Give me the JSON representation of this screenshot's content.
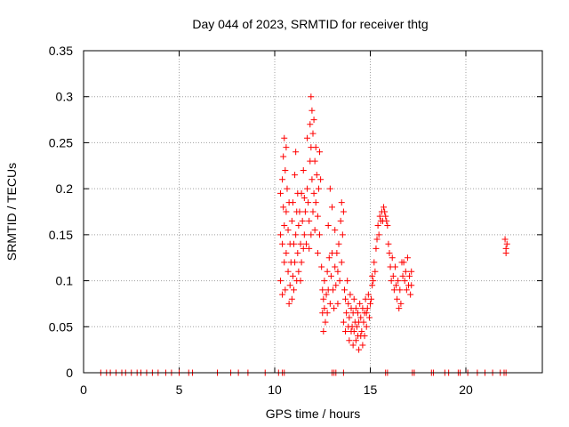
{
  "chart_data": {
    "type": "scatter",
    "title": "Day 044 of 2023, SRMTID for receiver thtg",
    "xlabel": "GPS time / hours",
    "ylabel": "SRMTID / TECUs",
    "xlim": [
      0,
      24
    ],
    "ylim": [
      0,
      0.35
    ],
    "x_ticks": [
      0,
      5,
      10,
      15,
      20
    ],
    "x_tick_labels": [
      "0",
      "5",
      "10",
      "15",
      "20"
    ],
    "y_ticks": [
      0,
      0.05,
      0.1,
      0.15,
      0.2,
      0.25,
      0.3,
      0.35
    ],
    "y_tick_labels": [
      "0",
      "0.05",
      "0.1",
      "0.15",
      "0.2",
      "0.25",
      "0.3",
      "0.35"
    ],
    "grid": true,
    "marker": "plus",
    "color": "#ff0000",
    "series": [
      {
        "points": [
          [
            0.9,
            0
          ],
          [
            1.2,
            0
          ],
          [
            1.4,
            0
          ],
          [
            1.7,
            0
          ],
          [
            2.0,
            0
          ],
          [
            2.2,
            0
          ],
          [
            2.5,
            0
          ],
          [
            2.8,
            0
          ],
          [
            3.0,
            0
          ],
          [
            3.3,
            0
          ],
          [
            3.6,
            0
          ],
          [
            3.9,
            0
          ],
          [
            4.3,
            0
          ],
          [
            4.6,
            0
          ],
          [
            5.0,
            0
          ],
          [
            5.5,
            0
          ],
          [
            5.7,
            0
          ],
          [
            7.0,
            0
          ],
          [
            7.7,
            0
          ],
          [
            8.1,
            0
          ],
          [
            8.6,
            0
          ],
          [
            9.5,
            0
          ],
          [
            10.2,
            0
          ],
          [
            10.4,
            0
          ],
          [
            10.5,
            0
          ],
          [
            13.0,
            0
          ],
          [
            13.1,
            0
          ],
          [
            13.2,
            0
          ],
          [
            13.6,
            0
          ],
          [
            15.8,
            0
          ],
          [
            15.9,
            0
          ],
          [
            17.2,
            0
          ],
          [
            17.3,
            0
          ],
          [
            18.2,
            0
          ],
          [
            18.3,
            0
          ],
          [
            18.9,
            0
          ],
          [
            19.1,
            0
          ],
          [
            19.6,
            0
          ],
          [
            19.7,
            0
          ],
          [
            20.1,
            0
          ],
          [
            20.6,
            0
          ],
          [
            21.0,
            0
          ],
          [
            21.4,
            0
          ],
          [
            21.8,
            0
          ],
          [
            22.0,
            0
          ],
          [
            22.1,
            0
          ],
          [
            10.3,
            0.195
          ],
          [
            10.3,
            0.15
          ],
          [
            10.3,
            0.1
          ],
          [
            10.4,
            0.21
          ],
          [
            10.4,
            0.14
          ],
          [
            10.4,
            0.085
          ],
          [
            10.45,
            0.235
          ],
          [
            10.45,
            0.18
          ],
          [
            10.5,
            0.255
          ],
          [
            10.5,
            0.16
          ],
          [
            10.5,
            0.12
          ],
          [
            10.55,
            0.22
          ],
          [
            10.55,
            0.09
          ],
          [
            10.6,
            0.245
          ],
          [
            10.6,
            0.175
          ],
          [
            10.6,
            0.13
          ],
          [
            10.65,
            0.2
          ],
          [
            10.7,
            0.155
          ],
          [
            10.7,
            0.11
          ],
          [
            10.75,
            0.185
          ],
          [
            10.75,
            0.075
          ],
          [
            10.8,
            0.14
          ],
          [
            10.8,
            0.095
          ],
          [
            10.85,
            0.12
          ],
          [
            10.9,
            0.165
          ],
          [
            10.9,
            0.08
          ],
          [
            10.95,
            0.185
          ],
          [
            10.95,
            0.105
          ],
          [
            11.0,
            0.14
          ],
          [
            11.0,
            0.09
          ],
          [
            11.05,
            0.215
          ],
          [
            11.05,
            0.12
          ],
          [
            11.1,
            0.24
          ],
          [
            11.1,
            0.15
          ],
          [
            11.15,
            0.175
          ],
          [
            11.15,
            0.1
          ],
          [
            11.2,
            0.195
          ],
          [
            11.2,
            0.13
          ],
          [
            11.25,
            0.16
          ],
          [
            11.25,
            0.11
          ],
          [
            11.3,
            0.175
          ],
          [
            11.35,
            0.14
          ],
          [
            11.35,
            0.1
          ],
          [
            11.4,
            0.195
          ],
          [
            11.4,
            0.12
          ],
          [
            11.45,
            0.165
          ],
          [
            11.5,
            0.22
          ],
          [
            11.5,
            0.135
          ],
          [
            11.55,
            0.19
          ],
          [
            11.55,
            0.15
          ],
          [
            11.6,
            0.175
          ],
          [
            11.65,
            0.14
          ],
          [
            11.7,
            0.255
          ],
          [
            11.7,
            0.2
          ],
          [
            11.75,
            0.185
          ],
          [
            11.8,
            0.165
          ],
          [
            11.8,
            0.135
          ],
          [
            11.85,
            0.27
          ],
          [
            11.85,
            0.23
          ],
          [
            11.9,
            0.3
          ],
          [
            11.9,
            0.245
          ],
          [
            11.9,
            0.15
          ],
          [
            11.95,
            0.285
          ],
          [
            11.95,
            0.21
          ],
          [
            12.0,
            0.26
          ],
          [
            12.0,
            0.175
          ],
          [
            12.05,
            0.275
          ],
          [
            12.05,
            0.195
          ],
          [
            12.1,
            0.23
          ],
          [
            12.1,
            0.155
          ],
          [
            12.15,
            0.245
          ],
          [
            12.15,
            0.185
          ],
          [
            12.2,
            0.215
          ],
          [
            12.25,
            0.17
          ],
          [
            12.25,
            0.13
          ],
          [
            12.3,
            0.2
          ],
          [
            12.35,
            0.24
          ],
          [
            12.35,
            0.15
          ],
          [
            12.4,
            0.21
          ],
          [
            12.45,
            0.115
          ],
          [
            12.5,
            0.09
          ],
          [
            12.5,
            0.065
          ],
          [
            12.55,
            0.08
          ],
          [
            12.55,
            0.045
          ],
          [
            12.6,
            0.1
          ],
          [
            12.6,
            0.07
          ],
          [
            12.65,
            0.055
          ],
          [
            12.7,
            0.085
          ],
          [
            12.75,
            0.11
          ],
          [
            12.75,
            0.065
          ],
          [
            12.8,
            0.16
          ],
          [
            12.8,
            0.09
          ],
          [
            12.85,
            0.125
          ],
          [
            12.9,
            0.2
          ],
          [
            12.9,
            0.075
          ],
          [
            12.95,
            0.105
          ],
          [
            13.0,
            0.18
          ],
          [
            13.0,
            0.13
          ],
          [
            13.05,
            0.09
          ],
          [
            13.1,
            0.07
          ],
          [
            13.15,
            0.155
          ],
          [
            13.15,
            0.115
          ],
          [
            13.2,
            0.095
          ],
          [
            13.25,
            0.13
          ],
          [
            13.3,
            0.11
          ],
          [
            13.3,
            0.075
          ],
          [
            13.35,
            0.14
          ],
          [
            13.4,
            0.1
          ],
          [
            13.45,
            0.165
          ],
          [
            13.5,
            0.12
          ],
          [
            13.5,
            0.185
          ],
          [
            13.55,
            0.15
          ],
          [
            13.6,
            0.175
          ],
          [
            13.6,
            0.055
          ],
          [
            13.65,
            0.09
          ],
          [
            13.7,
            0.045
          ],
          [
            13.7,
            0.08
          ],
          [
            13.75,
            0.065
          ],
          [
            13.8,
            0.1
          ],
          [
            13.85,
            0.05
          ],
          [
            13.85,
            0.075
          ],
          [
            13.9,
            0.035
          ],
          [
            13.9,
            0.06
          ],
          [
            13.95,
            0.085
          ],
          [
            14.0,
            0.045
          ],
          [
            14.0,
            0.07
          ],
          [
            14.05,
            0.05
          ],
          [
            14.1,
            0.065
          ],
          [
            14.1,
            0.03
          ],
          [
            14.15,
            0.08
          ],
          [
            14.15,
            0.045
          ],
          [
            14.2,
            0.055
          ],
          [
            14.25,
            0.035
          ],
          [
            14.25,
            0.07
          ],
          [
            14.3,
            0.05
          ],
          [
            14.35,
            0.04
          ],
          [
            14.35,
            0.065
          ],
          [
            14.4,
            0.025
          ],
          [
            14.4,
            0.055
          ],
          [
            14.45,
            0.075
          ],
          [
            14.5,
            0.04
          ],
          [
            14.5,
            0.06
          ],
          [
            14.55,
            0.045
          ],
          [
            14.6,
            0.07
          ],
          [
            14.6,
            0.03
          ],
          [
            14.65,
            0.055
          ],
          [
            14.7,
            0.065
          ],
          [
            14.7,
            0.04
          ],
          [
            14.75,
            0.08
          ],
          [
            14.8,
            0.05
          ],
          [
            14.8,
            0.065
          ],
          [
            14.85,
            0.07
          ],
          [
            14.9,
            0.085
          ],
          [
            14.95,
            0.06
          ],
          [
            15.0,
            0.075
          ],
          [
            15.05,
            0.08
          ],
          [
            15.1,
            0.105
          ],
          [
            15.1,
            0.095
          ],
          [
            15.15,
            0.1
          ],
          [
            15.2,
            0.12
          ],
          [
            15.25,
            0.11
          ],
          [
            15.3,
            0.135
          ],
          [
            15.35,
            0.145
          ],
          [
            15.4,
            0.16
          ],
          [
            15.45,
            0.15
          ],
          [
            15.5,
            0.17
          ],
          [
            15.55,
            0.165
          ],
          [
            15.6,
            0.175
          ],
          [
            15.65,
            0.165
          ],
          [
            15.7,
            0.18
          ],
          [
            15.75,
            0.175
          ],
          [
            15.8,
            0.17
          ],
          [
            15.85,
            0.165
          ],
          [
            15.9,
            0.16
          ],
          [
            15.95,
            0.14
          ],
          [
            16.0,
            0.13
          ],
          [
            16.05,
            0.115
          ],
          [
            16.1,
            0.1
          ],
          [
            16.15,
            0.125
          ],
          [
            16.2,
            0.105
          ],
          [
            16.25,
            0.09
          ],
          [
            16.3,
            0.115
          ],
          [
            16.35,
            0.095
          ],
          [
            16.4,
            0.08
          ],
          [
            16.45,
            0.1
          ],
          [
            16.5,
            0.07
          ],
          [
            16.55,
            0.09
          ],
          [
            16.6,
            0.075
          ],
          [
            16.65,
            0.12
          ],
          [
            16.7,
            0.105
          ],
          [
            16.75,
            0.12
          ],
          [
            16.8,
            0.1
          ],
          [
            16.85,
            0.11
          ],
          [
            16.9,
            0.09
          ],
          [
            16.95,
            0.125
          ],
          [
            17.0,
            0.095
          ],
          [
            17.05,
            0.105
          ],
          [
            17.1,
            0.085
          ],
          [
            17.15,
            0.11
          ],
          [
            17.15,
            0.095
          ],
          [
            22.05,
            0.145
          ],
          [
            22.1,
            0.135
          ],
          [
            22.1,
            0.13
          ],
          [
            22.15,
            0.14
          ]
        ]
      }
    ]
  }
}
